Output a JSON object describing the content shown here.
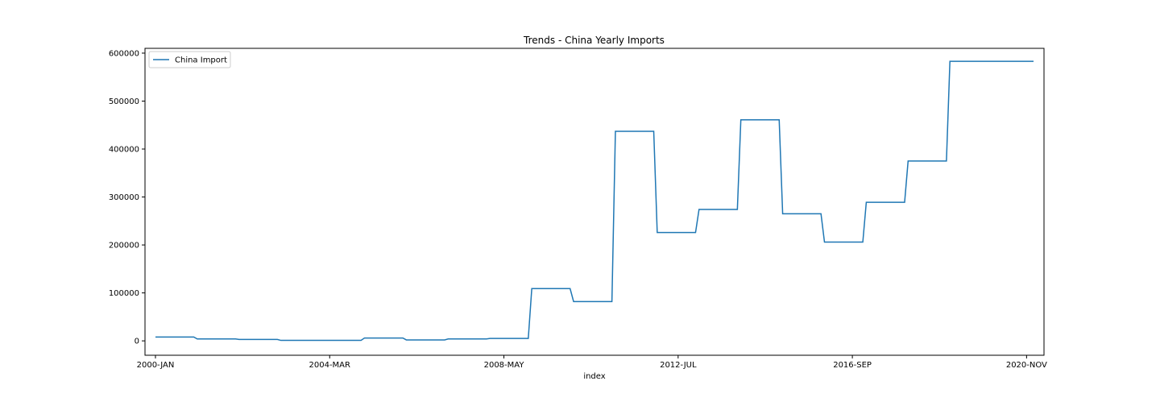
{
  "chart_data": {
    "type": "line",
    "title": "Trends - China Yearly Imports",
    "xlabel": "index",
    "ylabel": "",
    "ylim": [
      -30000,
      610000
    ],
    "grid": false,
    "legend_position": "top-left",
    "x_tick_labels": [
      "2000-JAN",
      "2004-MAR",
      "2008-MAY",
      "2012-JUL",
      "2016-SEP",
      "2020-NOV"
    ],
    "y_ticks": [
      0,
      100000,
      200000,
      300000,
      400000,
      500000,
      600000
    ],
    "y_tick_labels": [
      "0",
      "100000",
      "200000",
      "300000",
      "400000",
      "500000",
      "600000"
    ],
    "series": [
      {
        "name": "China Import",
        "color": "#1f77b4",
        "points": [
          {
            "x": "2000-JAN",
            "y": 8000
          },
          {
            "x": "2000-DEC",
            "y": 8000
          },
          {
            "x": "2001-JAN",
            "y": 4000
          },
          {
            "x": "2001-DEC",
            "y": 4000
          },
          {
            "x": "2002-JAN",
            "y": 3000
          },
          {
            "x": "2002-DEC",
            "y": 3000
          },
          {
            "x": "2003-JAN",
            "y": 1000
          },
          {
            "x": "2003-DEC",
            "y": 1000
          },
          {
            "x": "2004-DEC",
            "y": 1000
          },
          {
            "x": "2005-JAN",
            "y": 6000
          },
          {
            "x": "2005-DEC",
            "y": 6000
          },
          {
            "x": "2006-JAN",
            "y": 2000
          },
          {
            "x": "2006-DEC",
            "y": 2000
          },
          {
            "x": "2007-JAN",
            "y": 4000
          },
          {
            "x": "2007-DEC",
            "y": 4000
          },
          {
            "x": "2008-JAN",
            "y": 5000
          },
          {
            "x": "2008-DEC",
            "y": 5000
          },
          {
            "x": "2009-JAN",
            "y": 109000
          },
          {
            "x": "2009-DEC",
            "y": 109000
          },
          {
            "x": "2010-JAN",
            "y": 82000
          },
          {
            "x": "2010-DEC",
            "y": 82000
          },
          {
            "x": "2011-JAN",
            "y": 437000
          },
          {
            "x": "2011-DEC",
            "y": 437000
          },
          {
            "x": "2012-JAN",
            "y": 226000
          },
          {
            "x": "2012-DEC",
            "y": 226000
          },
          {
            "x": "2013-JAN",
            "y": 274000
          },
          {
            "x": "2013-DEC",
            "y": 274000
          },
          {
            "x": "2014-JAN",
            "y": 461000
          },
          {
            "x": "2014-DEC",
            "y": 461000
          },
          {
            "x": "2015-JAN",
            "y": 265000
          },
          {
            "x": "2015-DEC",
            "y": 265000
          },
          {
            "x": "2016-JAN",
            "y": 206000
          },
          {
            "x": "2016-DEC",
            "y": 206000
          },
          {
            "x": "2017-JAN",
            "y": 289000
          },
          {
            "x": "2017-DEC",
            "y": 289000
          },
          {
            "x": "2018-JAN",
            "y": 375000
          },
          {
            "x": "2018-DEC",
            "y": 375000
          },
          {
            "x": "2019-JAN",
            "y": 583000
          },
          {
            "x": "2021-JAN",
            "y": 583000
          }
        ]
      }
    ]
  }
}
